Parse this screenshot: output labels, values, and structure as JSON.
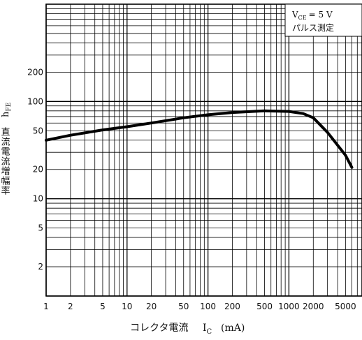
{
  "chart_data": {
    "type": "line",
    "x_scale": "log",
    "y_scale": "log",
    "xlim": [
      1,
      8000
    ],
    "ylim": [
      1,
      1000
    ],
    "grid": true,
    "x_ticks": [
      {
        "v": 1,
        "label": "1"
      },
      {
        "v": 2,
        "label": "2"
      },
      {
        "v": 5,
        "label": "5"
      },
      {
        "v": 10,
        "label": "10"
      },
      {
        "v": 20,
        "label": "20"
      },
      {
        "v": 50,
        "label": "50"
      },
      {
        "v": 100,
        "label": "100"
      },
      {
        "v": 200,
        "label": "200"
      },
      {
        "v": 500,
        "label": "500"
      },
      {
        "v": 1000,
        "label": "1000"
      },
      {
        "v": 2000,
        "label": "2000"
      },
      {
        "v": 5000,
        "label": "5000"
      }
    ],
    "y_ticks": [
      {
        "v": 2,
        "label": "2"
      },
      {
        "v": 5,
        "label": "5"
      },
      {
        "v": 10,
        "label": "10"
      },
      {
        "v": 20,
        "label": "20"
      },
      {
        "v": 50,
        "label": "50"
      },
      {
        "v": 100,
        "label": "100"
      },
      {
        "v": 200,
        "label": "200"
      }
    ],
    "ylabel_symbol": "h",
    "ylabel_symbol_sub": "FE",
    "ylabel_text": "直流電流増幅率",
    "xlabel_text": "コレクタ電流",
    "xlabel_symbol": "I",
    "xlabel_symbol_sub": "C",
    "xlabel_unit": "(mA)",
    "condition_line1_symbol": "V",
    "condition_line1_sub": "CE",
    "condition_line1_value": "= 5 V",
    "condition_line2": "パルス測定",
    "series": [
      {
        "x": [
          1,
          2,
          5,
          10,
          20,
          50,
          100,
          200,
          500,
          1000,
          1500,
          2000,
          3000,
          5000,
          6000
        ],
        "y": [
          40,
          45,
          51,
          55,
          60,
          68,
          73,
          77,
          80,
          79,
          75,
          68,
          48,
          28,
          21
        ]
      }
    ]
  }
}
